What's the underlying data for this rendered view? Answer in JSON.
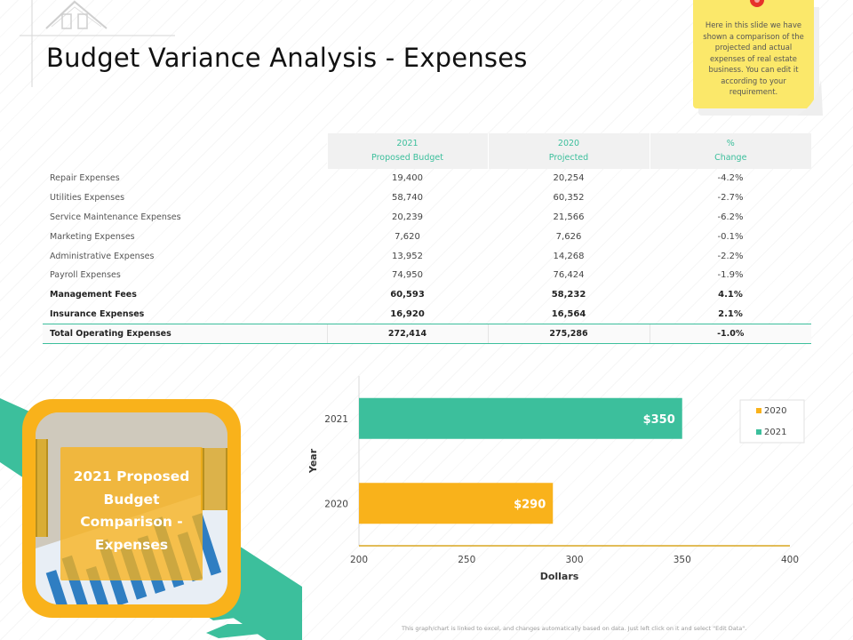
{
  "header": {
    "title": "Budget Variance Analysis - Expenses"
  },
  "note": {
    "text": "Here in this slide we have shown a comparison of the projected  and actual expenses of real estate business. You can edit it according to your requirement."
  },
  "table": {
    "headers": [
      {
        "line1": "2021",
        "line2": "Proposed Budget"
      },
      {
        "line1": "2020",
        "line2": "Projected"
      },
      {
        "line1": "%",
        "line2": "Change"
      }
    ],
    "rows": [
      {
        "label": "Repair Expenses",
        "budget": "19,400",
        "projected": "20,254",
        "change": "-4.2%"
      },
      {
        "label": "Utilities Expenses",
        "budget": "58,740",
        "projected": "60,352",
        "change": "-2.7%"
      },
      {
        "label": "Service Maintenance  Expenses",
        "budget": "20,239",
        "projected": "21,566",
        "change": "-6.2%"
      },
      {
        "label": "Marketing  Expenses",
        "budget": "7,620",
        "projected": "7,626",
        "change": "-0.1%"
      },
      {
        "label": "Administrative Expenses",
        "budget": "13,952",
        "projected": "14,268",
        "change": "-2.2%"
      },
      {
        "label": "Payroll Expenses",
        "budget": "74,950",
        "projected": "76,424",
        "change": "-1.9%"
      },
      {
        "label": "Management Fees",
        "budget": "60,593",
        "projected": "58,232",
        "change": "4.1%",
        "bold": true
      },
      {
        "label": "Insurance Expenses",
        "budget": "16,920",
        "projected": "16,564",
        "change": "2.1%",
        "bold": true
      }
    ],
    "total": {
      "label": "Total Operating Expenses",
      "budget": "272,414",
      "projected": "275,286",
      "change": "-1.0%"
    }
  },
  "card": {
    "text": "2021 Proposed Budget Comparison - Expenses"
  },
  "chart_data": {
    "type": "bar",
    "orientation": "horizontal",
    "categories": [
      "2021",
      "2020"
    ],
    "series": [
      {
        "name": "2021",
        "category": "2021",
        "value": 350,
        "label": "$350",
        "color": "#3cbf9c"
      },
      {
        "name": "2020",
        "category": "2020",
        "value": 290,
        "label": "$290",
        "color": "#f9b21b"
      }
    ],
    "xlim": [
      200,
      400
    ],
    "xticks": [
      "200",
      "250",
      "300",
      "350",
      "400"
    ],
    "xlabel": "Dollars",
    "ylabel": "Year",
    "legend": {
      "placement": "right",
      "entries": [
        "2020",
        "2021"
      ]
    },
    "grid": false
  },
  "footer": {
    "text": "This graph/chart is linked to excel, and changes automatically based on data. Just left click on it and select \"Edit Data\"."
  },
  "colors": {
    "accent_green": "#3cbf9c",
    "accent_orange": "#f9b21b",
    "note_yellow": "#fbe86a"
  }
}
